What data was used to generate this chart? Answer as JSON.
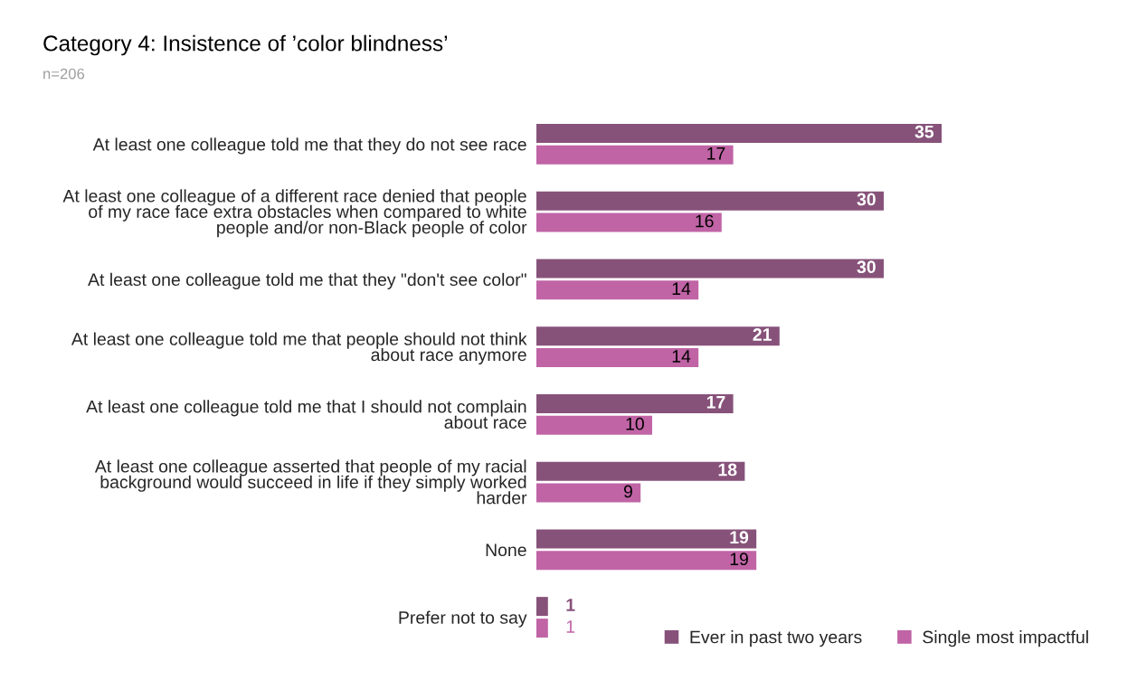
{
  "chart_data": {
    "type": "bar",
    "orientation": "horizontal",
    "title": "Category 4: Insistence of ’color blindness’",
    "subtitle": "n=206",
    "categories": [
      "At least one colleague told me that they do not see race",
      "At least one colleague of a different race denied that people\nof my race face extra obstacles when compared to white\npeople and/or non-Black people of color",
      "At least one colleague told me that they \"don't see color\"",
      "At least one colleague told me that people should not think\nabout race anymore",
      "At least one colleague told me that I should not complain\nabout race",
      "At least one colleague asserted that people of my racial\nbackground would succeed in life if they simply worked\nharder",
      "None",
      "Prefer not to say"
    ],
    "series": [
      {
        "name": "Ever in past two years",
        "color": "#87527a",
        "values": [
          35,
          30,
          30,
          21,
          17,
          18,
          19,
          1
        ]
      },
      {
        "name": "Single most impactful",
        "color": "#c064a6",
        "values": [
          17,
          16,
          14,
          14,
          10,
          9,
          19,
          1
        ]
      }
    ],
    "data_labels": true,
    "legend": "bottom right",
    "tick_labels": "y"
  }
}
